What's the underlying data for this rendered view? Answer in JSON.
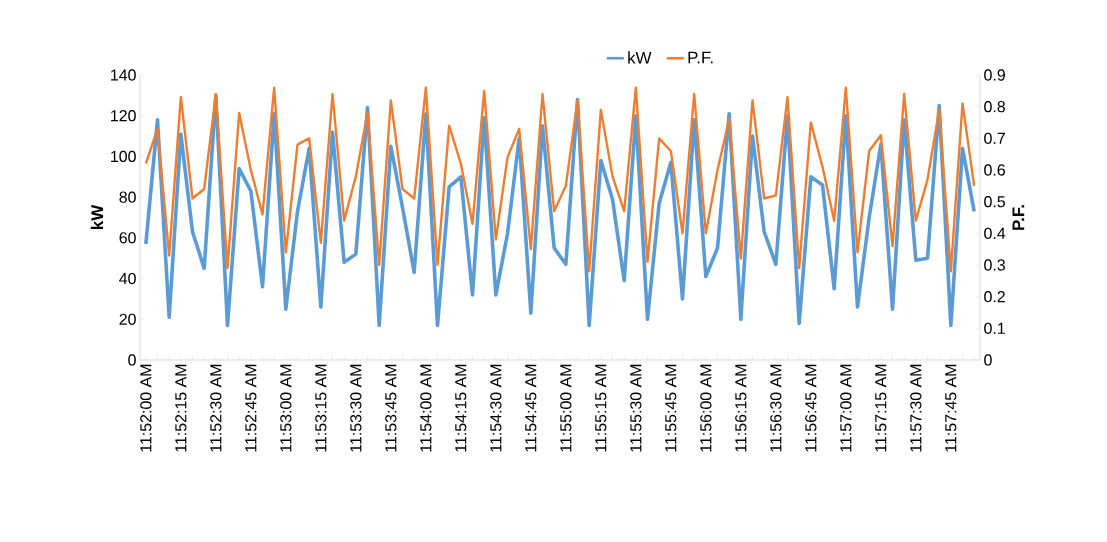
{
  "chart_data": {
    "type": "line",
    "categories": [
      "11:52:00 AM",
      null,
      null,
      "11:52:15 AM",
      null,
      null,
      "11:52:30 AM",
      null,
      null,
      "11:52:45 AM",
      null,
      null,
      "11:53:00 AM",
      null,
      null,
      "11:53:15 AM",
      null,
      null,
      "11:53:30 AM",
      null,
      null,
      "11:53:45 AM",
      null,
      null,
      "11:54:00 AM",
      null,
      null,
      "11:54:15 AM",
      null,
      null,
      "11:54:30 AM",
      null,
      null,
      "11:54:45 AM",
      null,
      null,
      "11:55:00 AM",
      null,
      null,
      "11:55:15 AM",
      null,
      null,
      "11:55:30 AM",
      null,
      null,
      "11:55:45 AM",
      null,
      null,
      "11:56:00 AM",
      null,
      null,
      "11:56:15 AM",
      null,
      null,
      "11:56:30 AM",
      null,
      null,
      "11:56:45 AM",
      null,
      null,
      "11:57:00 AM",
      null,
      null,
      "11:57:15 AM",
      null,
      null,
      "11:57:30 AM",
      null,
      null,
      "11:57:45 AM",
      null,
      null
    ],
    "series": [
      {
        "name": "kW",
        "color": "#5b9bd5",
        "values": [
          57,
          118,
          21,
          111,
          63,
          45,
          130,
          17,
          94,
          83,
          36,
          121,
          25,
          73,
          104,
          26,
          112,
          48,
          52,
          124,
          17,
          105,
          75,
          43,
          121,
          17,
          85,
          90,
          32,
          119,
          32,
          62,
          109,
          23,
          115,
          55,
          47,
          128,
          17,
          98,
          79,
          39,
          120,
          20,
          77,
          97,
          30,
          118,
          41,
          55,
          121,
          20,
          110,
          63,
          47,
          120,
          18,
          90,
          86,
          35,
          120,
          26,
          70,
          106,
          25,
          118,
          49,
          50,
          125,
          17,
          104,
          73
        ]
      },
      {
        "name": "P.F.",
        "color": "#ed7d31",
        "axis": "y2",
        "values": [
          0.62,
          0.73,
          0.33,
          0.83,
          0.51,
          0.54,
          0.84,
          0.29,
          0.78,
          0.6,
          0.46,
          0.86,
          0.34,
          0.68,
          0.7,
          0.37,
          0.84,
          0.44,
          0.58,
          0.78,
          0.3,
          0.82,
          0.54,
          0.51,
          0.86,
          0.3,
          0.74,
          0.62,
          0.43,
          0.85,
          0.38,
          0.64,
          0.73,
          0.35,
          0.84,
          0.47,
          0.55,
          0.82,
          0.28,
          0.79,
          0.58,
          0.47,
          0.86,
          0.31,
          0.7,
          0.66,
          0.4,
          0.84,
          0.4,
          0.6,
          0.76,
          0.32,
          0.82,
          0.51,
          0.52,
          0.83,
          0.29,
          0.75,
          0.61,
          0.44,
          0.86,
          0.34,
          0.66,
          0.71,
          0.36,
          0.84,
          0.44,
          0.57,
          0.79,
          0.28,
          0.81,
          0.55
        ]
      }
    ],
    "ylabel": "kW",
    "y2label": "P.F.",
    "ylim": [
      0,
      140
    ],
    "yticks": [
      0,
      20,
      40,
      60,
      80,
      100,
      120,
      140
    ],
    "y2lim": [
      0,
      0.9
    ],
    "y2ticks": [
      0,
      0.1,
      0.2,
      0.3,
      0.4,
      0.5,
      0.6,
      0.7,
      0.8,
      0.9
    ],
    "legend": "top",
    "marker": "none"
  }
}
